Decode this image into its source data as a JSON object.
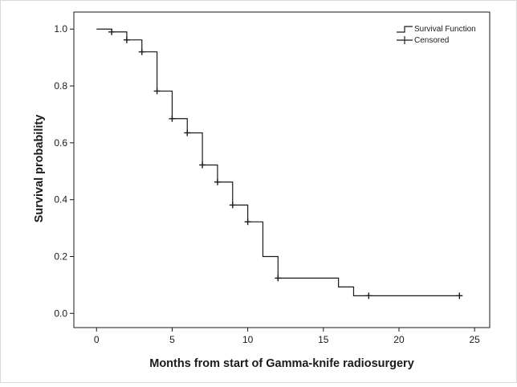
{
  "chart_data": {
    "type": "line",
    "subtype": "kaplan-meier",
    "xlabel": "Months from start of Gamma-knife radiosurgery",
    "ylabel": "Survival probability",
    "xlim": [
      -1.5,
      26
    ],
    "ylim": [
      -0.05,
      1.06
    ],
    "xticks": [
      0,
      5,
      10,
      15,
      20,
      25
    ],
    "yticks": [
      0.0,
      0.2,
      0.4,
      0.6,
      0.8,
      1.0
    ],
    "xtick_labels": [
      "0",
      "5",
      "10",
      "15",
      "20",
      "25"
    ],
    "ytick_labels": [
      "0.0",
      "0.2",
      "0.4",
      "0.6",
      "0.8",
      "1.0"
    ],
    "grid": false,
    "legend_position": "top-right",
    "series": [
      {
        "name": "Survival Function",
        "style": "step",
        "x": [
          0,
          1,
          2,
          3,
          4,
          5,
          6,
          7,
          8,
          9,
          10,
          11,
          12,
          16,
          17,
          24
        ],
        "y": [
          1.0,
          0.99,
          0.962,
          0.92,
          0.782,
          0.685,
          0.635,
          0.522,
          0.462,
          0.381,
          0.322,
          0.2,
          0.124,
          0.093,
          0.062,
          0.062
        ]
      },
      {
        "name": "Censored",
        "style": "marker",
        "x": [
          1,
          2,
          3,
          4,
          5,
          6,
          7,
          8,
          9,
          10,
          12,
          18,
          24
        ],
        "y": [
          0.99,
          0.962,
          0.92,
          0.782,
          0.685,
          0.635,
          0.522,
          0.462,
          0.381,
          0.322,
          0.124,
          0.062,
          0.062
        ]
      }
    ],
    "colors": {
      "line": "#1a1a1a",
      "frame": "#1a1a1a",
      "background": "#ffffff"
    }
  }
}
